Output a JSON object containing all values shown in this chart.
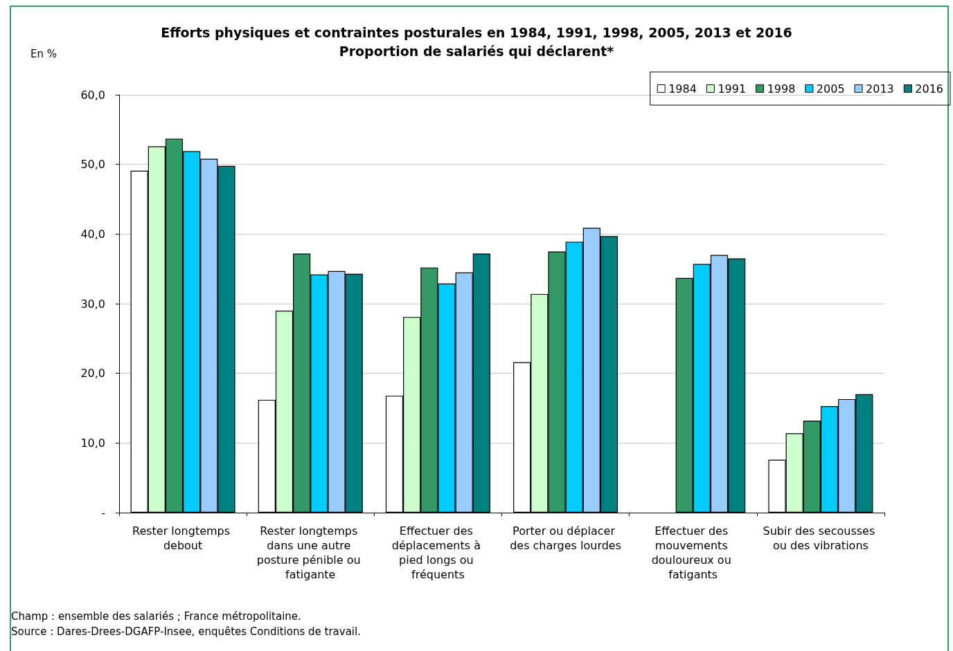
{
  "chart_data": {
    "type": "bar",
    "title": "Efforts physiques et contraintes posturales en 1984, 1991, 1998, 2005, 2013 et 2016",
    "subtitle": "Proportion de salariés qui déclarent*",
    "ylabel": "En %",
    "categories": [
      "Rester longtemps debout",
      "Rester longtemps dans une autre posture pénible ou fatigante",
      "Effectuer des déplacements à pied longs ou fréquents",
      "Porter ou déplacer des charges lourdes",
      "Effectuer des mouvements douloureux ou fatigants",
      "Subir des secousses ou des vibrations"
    ],
    "series": [
      {
        "name": "1984",
        "color": "#ffffff",
        "values": [
          49.1,
          16.2,
          16.8,
          21.6,
          null,
          7.6
        ]
      },
      {
        "name": "1991",
        "color": "#ccffcc",
        "values": [
          52.6,
          29.0,
          28.1,
          31.4,
          null,
          11.4
        ]
      },
      {
        "name": "1998",
        "color": "#339966",
        "values": [
          53.7,
          37.2,
          35.2,
          37.5,
          33.7,
          13.2
        ]
      },
      {
        "name": "2005",
        "color": "#00ccff",
        "values": [
          51.9,
          34.2,
          32.9,
          38.9,
          35.7,
          15.3
        ]
      },
      {
        "name": "2013",
        "color": "#99ccff",
        "values": [
          50.8,
          34.7,
          34.5,
          40.9,
          37.0,
          16.3
        ]
      },
      {
        "name": "2016",
        "color": "#008080",
        "values": [
          49.8,
          34.3,
          37.2,
          39.7,
          36.5,
          17.0
        ]
      }
    ],
    "ylim": [
      0,
      60
    ],
    "yticks": [
      {
        "value": 0,
        "label": "-"
      },
      {
        "value": 10,
        "label": "10,0"
      },
      {
        "value": 20,
        "label": "20,0"
      },
      {
        "value": 30,
        "label": "30,0"
      },
      {
        "value": 40,
        "label": "40,0"
      },
      {
        "value": 50,
        "label": "50,0"
      },
      {
        "value": 60,
        "label": "60,0"
      }
    ],
    "grid": "y",
    "legend": "top right",
    "annotations": [
      "Champ : ensemble des salariés ; France métropolitaine.",
      "Source : Dares-Drees-DGAFP-Insee, enquêtes Conditions de travail."
    ]
  }
}
